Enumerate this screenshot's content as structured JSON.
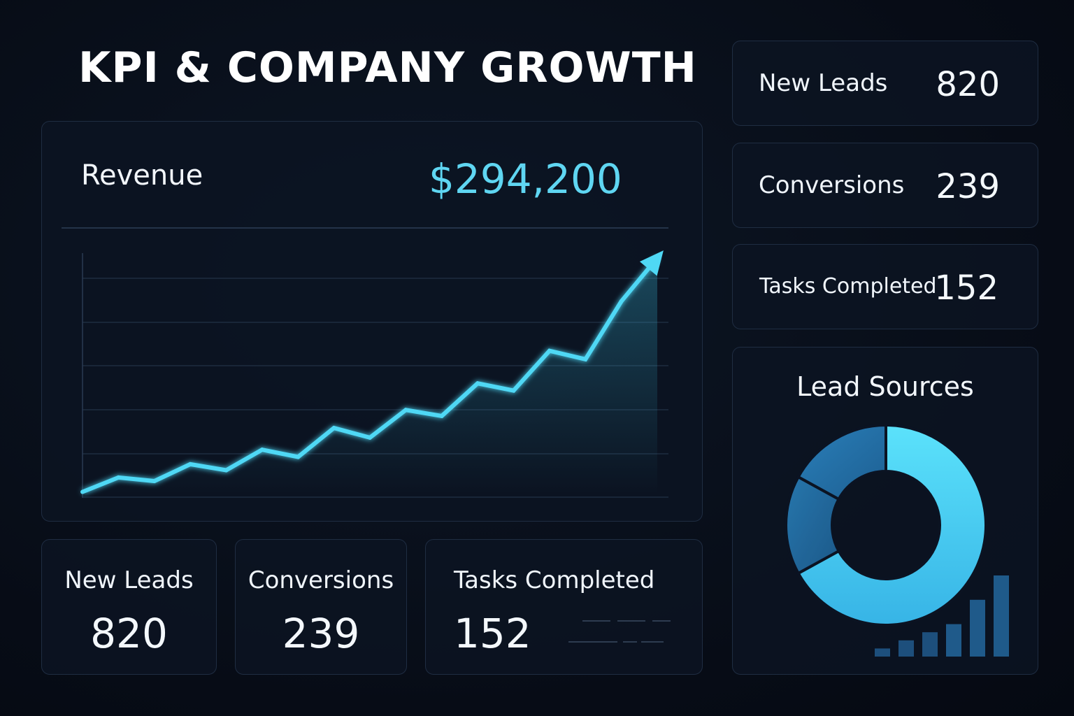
{
  "header": {
    "title": "KPI & COMPANY GROWTH"
  },
  "revenue": {
    "label": "Revenue",
    "value": "$294,200"
  },
  "kpi_cards": [
    {
      "label": "New Leads",
      "value": "820"
    },
    {
      "label": "Conversions",
      "value": "239"
    },
    {
      "label": "Tasks Completed",
      "value": "152"
    }
  ],
  "stat_cards": [
    {
      "label": "New Leads",
      "value": "820"
    },
    {
      "label": "Conversions",
      "value": "239"
    },
    {
      "label": "Tasks Completed",
      "value": "152"
    }
  ],
  "lead_sources": {
    "title": "Lead Sources"
  },
  "colors": {
    "accent": "#4fd8f5",
    "donut_light": "#4fd2f3",
    "donut_mid": "#2a84bd",
    "donut_dark": "#2270a6"
  },
  "chart_data": [
    {
      "type": "line",
      "x": [
        0,
        1,
        2,
        3,
        4,
        5,
        6,
        7,
        8,
        9,
        10,
        11,
        12,
        13,
        14,
        15,
        16
      ],
      "y": [
        2,
        14,
        11,
        25,
        20,
        37,
        31,
        55,
        47,
        70,
        65,
        92,
        86,
        119,
        112,
        160,
        196
      ],
      "ylim": [
        0,
        200
      ],
      "grid": true
    },
    {
      "type": "pie",
      "values": [
        67,
        16,
        17
      ]
    },
    {
      "type": "bar",
      "values": [
        1,
        2,
        3,
        4,
        7,
        10
      ]
    }
  ]
}
